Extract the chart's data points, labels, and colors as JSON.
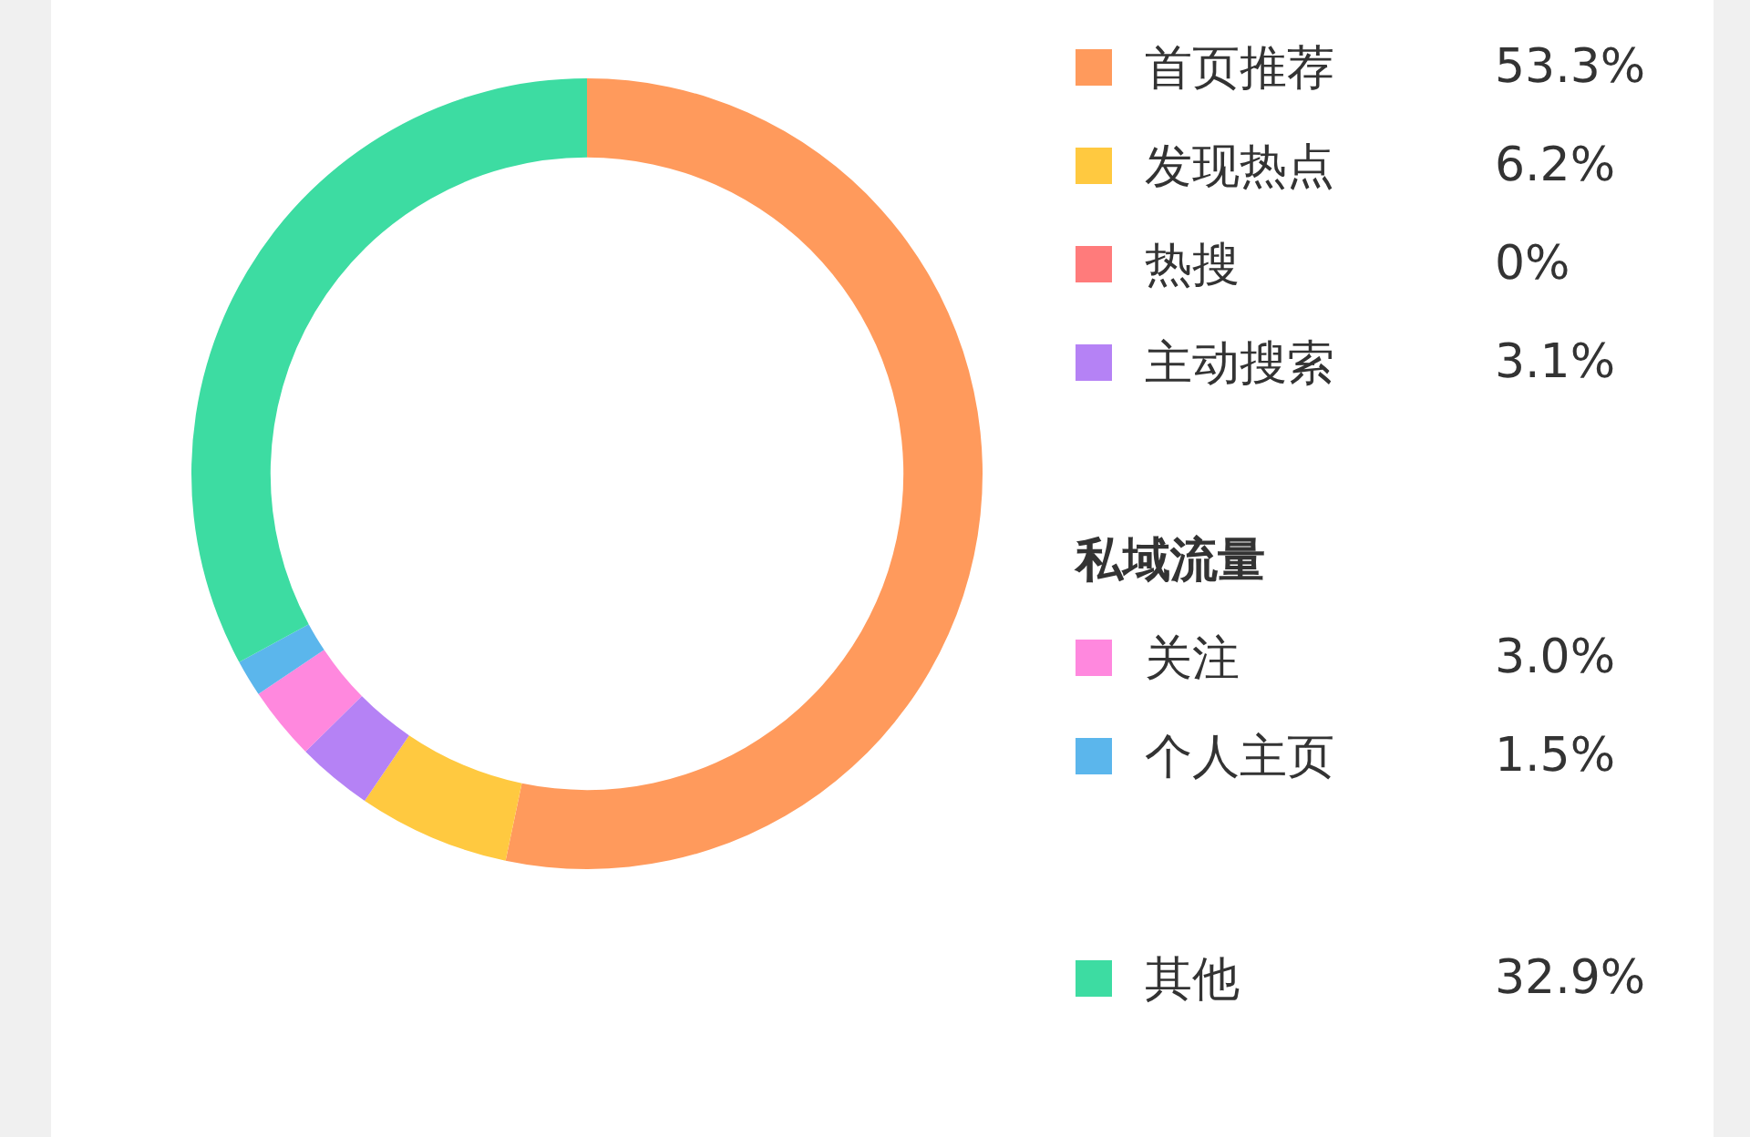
{
  "chart_data": {
    "type": "donut",
    "categories": [
      "首页推荐",
      "发现热点",
      "热搜",
      "主动搜索",
      "关注",
      "个人主页",
      "其他"
    ],
    "values": [
      53.3,
      6.2,
      0,
      3.1,
      3.0,
      1.5,
      32.9
    ],
    "colors": [
      "#ff9a5c",
      "#ffc940",
      "#ff7b7b",
      "#b582f5",
      "#ff88de",
      "#5bb6ec",
      "#3ddca2"
    ],
    "value_labels": [
      "53.3%",
      "6.2%",
      "0%",
      "3.1%",
      "3.0%",
      "1.5%",
      "32.9%"
    ],
    "annotations": [
      "私域流量"
    ],
    "legend": "right"
  }
}
